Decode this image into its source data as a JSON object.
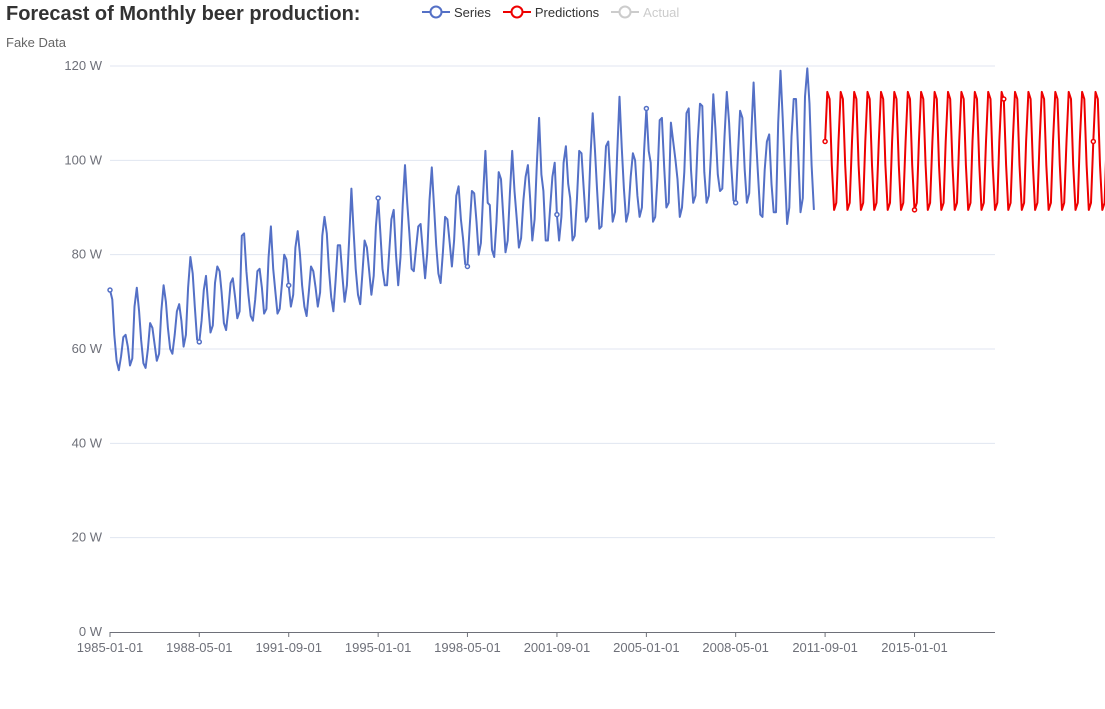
{
  "chart_data": {
    "type": "line",
    "title": "Forecast of Monthly beer production:",
    "subtitle": "Fake Data",
    "xlabel": "",
    "ylabel": "",
    "ylim": [
      0,
      120
    ],
    "y_ticks": [
      "0 W",
      "20 W",
      "40 W",
      "60 W",
      "80 W",
      "100 W",
      "120 W"
    ],
    "x_ticks": [
      "1985-01-01",
      "1988-05-01",
      "1991-09-01",
      "1995-01-01",
      "1998-05-01",
      "2001-09-01",
      "2005-01-01",
      "2008-05-01",
      "2011-09-01",
      "2015-01-01"
    ],
    "grid": true,
    "legend_position": "top",
    "series": [
      {
        "name": "Series",
        "color": "#5470c6",
        "x_start": "1985-01-01",
        "x_step": "1 month",
        "values": [
          72.5,
          70.5,
          63.0,
          57.5,
          55.5,
          58.5,
          62.5,
          63.0,
          60.5,
          56.5,
          58.0,
          69.0,
          73.0,
          68.0,
          62.0,
          57.0,
          56.0,
          60.0,
          65.5,
          64.5,
          61.0,
          57.5,
          59.0,
          68.0,
          73.5,
          70.0,
          64.5,
          60.0,
          59.0,
          63.0,
          68.0,
          69.5,
          66.0,
          60.5,
          63.0,
          73.0,
          79.5,
          76.0,
          69.0,
          62.0,
          61.5,
          66.0,
          72.5,
          75.5,
          69.0,
          63.5,
          65.0,
          74.0,
          77.5,
          76.5,
          72.0,
          65.5,
          64.0,
          68.5,
          74.0,
          75.0,
          71.0,
          66.5,
          68.0,
          84.0,
          84.5,
          76.5,
          71.5,
          67.0,
          66.0,
          70.5,
          76.5,
          77.0,
          73.0,
          67.5,
          68.5,
          79.5,
          86.0,
          77.0,
          72.5,
          67.5,
          68.5,
          74.0,
          80.0,
          79.0,
          73.5,
          69.0,
          71.5,
          81.5,
          85.0,
          80.0,
          73.5,
          69.0,
          67.0,
          72.0,
          77.5,
          76.5,
          73.0,
          69.0,
          72.0,
          84.0,
          88.0,
          84.5,
          77.0,
          71.0,
          68.0,
          74.5,
          82.0,
          82.0,
          75.5,
          70.0,
          73.5,
          83.0,
          94.0,
          85.0,
          77.0,
          71.5,
          69.5,
          76.0,
          83.0,
          81.5,
          76.5,
          71.5,
          75.5,
          86.0,
          92.0,
          84.5,
          77.0,
          73.5,
          73.5,
          80.5,
          87.5,
          89.5,
          80.0,
          73.5,
          79.5,
          90.5,
          99.0,
          91.0,
          84.5,
          77.0,
          76.5,
          81.5,
          86.0,
          86.5,
          80.5,
          75.0,
          80.5,
          91.5,
          98.5,
          90.0,
          82.0,
          76.0,
          74.0,
          80.5,
          88.0,
          87.5,
          82.5,
          77.5,
          83.0,
          92.5,
          94.5,
          87.5,
          83.5,
          78.0,
          77.5,
          86.0,
          93.5,
          93.0,
          87.0,
          80.0,
          82.5,
          92.5,
          102.0,
          91.0,
          90.5,
          81.0,
          79.5,
          87.0,
          97.5,
          96.0,
          88.0,
          80.5,
          83.0,
          93.0,
          102.0,
          93.5,
          88.0,
          81.5,
          83.5,
          91.5,
          96.5,
          99.0,
          92.0,
          83.0,
          87.5,
          99.0,
          109.0,
          97.0,
          93.5,
          83.0,
          83.0,
          90.0,
          96.5,
          99.5,
          88.5,
          83.0,
          88.0,
          99.5,
          103.0,
          95.0,
          92.0,
          83.0,
          84.0,
          92.0,
          102.0,
          101.5,
          94.0,
          87.0,
          88.0,
          100.5,
          110.0,
          102.0,
          94.0,
          85.5,
          86.0,
          94.0,
          103.0,
          104.0,
          95.5,
          87.0,
          89.0,
          101.5,
          113.5,
          102.5,
          94.0,
          87.0,
          89.0,
          96.5,
          101.5,
          100.0,
          92.5,
          88.0,
          90.0,
          102.0,
          111.0,
          102.0,
          99.5,
          87.0,
          88.0,
          96.5,
          108.5,
          109.0,
          98.5,
          90.0,
          91.0,
          108.0,
          104.0,
          100.0,
          96.0,
          88.0,
          90.0,
          97.5,
          110.0,
          111.0,
          98.0,
          91.0,
          92.5,
          104.0,
          112.0,
          111.5,
          97.5,
          91.0,
          92.5,
          102.0,
          114.0,
          106.5,
          97.0,
          93.5,
          94.0,
          105.0,
          114.5,
          108.0,
          99.0,
          91.5,
          91.0,
          101.0,
          110.5,
          109.0,
          98.0,
          91.0,
          93.0,
          106.0,
          116.5,
          105.0,
          97.0,
          88.5,
          88.0,
          98.0,
          104.0,
          105.5,
          95.0,
          89.0,
          89.0,
          108.0,
          119.0,
          109.0,
          98.0,
          86.5,
          90.0,
          105.0,
          113.0,
          113.0,
          101.0,
          89.0,
          92.0,
          113.5,
          119.5,
          112.0,
          99.0,
          89.5
        ]
      },
      {
        "name": "Predictions",
        "color": "#ee0000",
        "x_start": "2011-09-01",
        "x_step": "1 month",
        "values": [
          104.0,
          114.5,
          113.0,
          99.0,
          89.5,
          91.0,
          104.0,
          114.5,
          113.0,
          99.0,
          89.5,
          91.0,
          104.0,
          114.5,
          113.0,
          99.0,
          89.5,
          91.0,
          104.0,
          114.5,
          113.0,
          99.0,
          89.5,
          91.0,
          104.0,
          114.5,
          113.0,
          99.0,
          89.5,
          91.0,
          104.0,
          114.5,
          113.0,
          99.0,
          89.5,
          91.0,
          104.0,
          114.5,
          113.0,
          99.0,
          89.5,
          91.0,
          104.0,
          114.5,
          113.0,
          99.0,
          89.5,
          91.0,
          104.0,
          114.5,
          113.0,
          99.0,
          89.5,
          91.0,
          104.0,
          114.5,
          113.0,
          99.0,
          89.5,
          91.0,
          104.0,
          114.5,
          113.0,
          99.0,
          89.5,
          91.0,
          104.0,
          114.5,
          113.0,
          99.0,
          89.5,
          91.0,
          104.0,
          114.5,
          113.0,
          99.0,
          89.5,
          91.0,
          104.0,
          114.5,
          113.0,
          99.0,
          89.5,
          91.0,
          104.0,
          114.5,
          113.0,
          99.0,
          89.5,
          91.0,
          104.0,
          114.5,
          113.0,
          99.0,
          89.5,
          91.0,
          104.0,
          114.5,
          113.0,
          99.0,
          89.5,
          91.0,
          104.0,
          114.5,
          113.0,
          99.0,
          89.5,
          91.0,
          104.0,
          114.5,
          113.0,
          99.0,
          89.5,
          91.0,
          104.0,
          114.5,
          113.0,
          99.0,
          89.5,
          91.0,
          104.0,
          114.5,
          113.0,
          99.0,
          89.5,
          91.0,
          104.0,
          114.5,
          113.0,
          99.0,
          89.5,
          91.0
        ]
      },
      {
        "name": "Actual",
        "color": "#cccccc",
        "hidden": true,
        "values": []
      }
    ]
  }
}
